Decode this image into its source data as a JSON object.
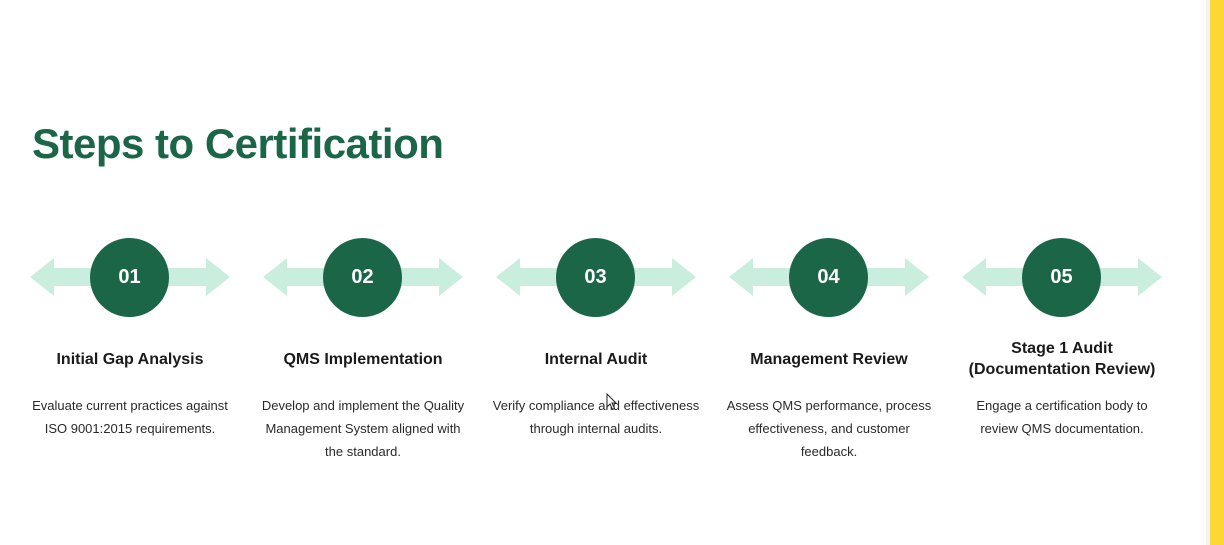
{
  "title": "Steps to Certification",
  "colors": {
    "primary_green": "#1c6648",
    "arrow_mint": "#c9eedd",
    "accent_yellow": "#fdd835"
  },
  "steps": [
    {
      "number": "01",
      "title": "Initial Gap Analysis",
      "description": "Evaluate current practices against ISO 9001:2015 requirements."
    },
    {
      "number": "02",
      "title": "QMS Implementation",
      "description": "Develop and implement the Quality Management System aligned with the standard."
    },
    {
      "number": "03",
      "title": "Internal Audit",
      "description": "Verify compliance and effectiveness through internal audits."
    },
    {
      "number": "04",
      "title": "Management Review",
      "description": "Assess QMS performance, process effectiveness, and customer feedback."
    },
    {
      "number": "05",
      "title": "Stage 1 Audit (Documentation Review)",
      "description": "Engage a certification body to review QMS documentation."
    }
  ]
}
